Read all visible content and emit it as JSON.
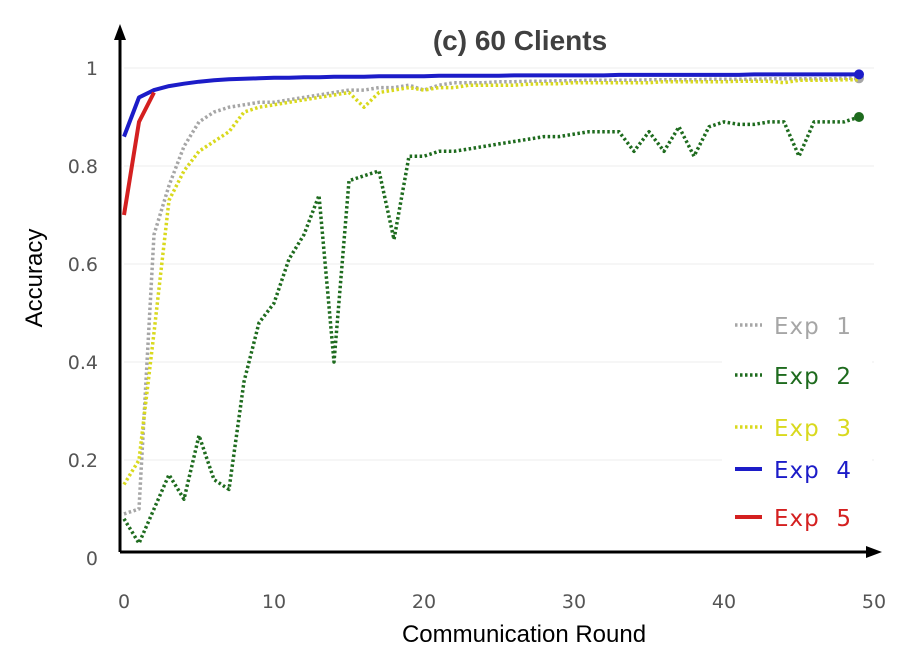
{
  "chart_data": {
    "type": "line",
    "title": "(c) 60 Clients",
    "xlabel": "Communication Round",
    "ylabel": "Accuracy",
    "xlim": [
      0,
      50
    ],
    "ylim": [
      0,
      1.0
    ],
    "x_ticks": [
      "0",
      "10",
      "20",
      "30",
      "40",
      "50"
    ],
    "y_ticks": [
      "0",
      "0.2",
      "0.4",
      "0.6",
      "0.8",
      "1"
    ],
    "grid": "horizontal",
    "legend_position": "bottom-right",
    "series": [
      {
        "name": "Exp  1",
        "color": "#a6a6a6",
        "style": "dotted",
        "end_marker": true,
        "x": [
          0,
          1,
          2,
          3,
          4,
          5,
          6,
          7,
          8,
          9,
          10,
          11,
          12,
          13,
          14,
          15,
          16,
          17,
          18,
          19,
          20,
          21,
          22,
          23,
          24,
          25,
          26,
          27,
          28,
          29,
          30,
          31,
          32,
          33,
          34,
          35,
          36,
          37,
          38,
          39,
          40,
          41,
          42,
          43,
          44,
          45,
          46,
          47,
          48,
          49
        ],
        "y": [
          0.09,
          0.1,
          0.66,
          0.76,
          0.84,
          0.89,
          0.91,
          0.92,
          0.925,
          0.93,
          0.93,
          0.935,
          0.94,
          0.945,
          0.95,
          0.955,
          0.955,
          0.96,
          0.96,
          0.965,
          0.955,
          0.965,
          0.97,
          0.97,
          0.97,
          0.972,
          0.972,
          0.973,
          0.973,
          0.974,
          0.974,
          0.975,
          0.975,
          0.975,
          0.975,
          0.976,
          0.976,
          0.976,
          0.976,
          0.977,
          0.977,
          0.977,
          0.977,
          0.978,
          0.978,
          0.978,
          0.978,
          0.978,
          0.979,
          0.979
        ]
      },
      {
        "name": "Exp  2",
        "color": "#1e6b1e",
        "style": "dotted",
        "end_marker": true,
        "x": [
          0,
          1,
          2,
          3,
          4,
          5,
          6,
          7,
          8,
          9,
          10,
          11,
          12,
          13,
          14,
          15,
          16,
          17,
          18,
          19,
          20,
          21,
          22,
          23,
          24,
          25,
          26,
          27,
          28,
          29,
          30,
          31,
          32,
          33,
          34,
          35,
          36,
          37,
          38,
          39,
          40,
          41,
          42,
          43,
          44,
          45,
          46,
          47,
          48,
          49
        ],
        "y": [
          0.08,
          0.03,
          0.1,
          0.17,
          0.12,
          0.25,
          0.16,
          0.14,
          0.36,
          0.48,
          0.52,
          0.61,
          0.66,
          0.74,
          0.4,
          0.77,
          0.78,
          0.79,
          0.65,
          0.82,
          0.82,
          0.83,
          0.83,
          0.835,
          0.84,
          0.845,
          0.85,
          0.855,
          0.86,
          0.86,
          0.865,
          0.87,
          0.87,
          0.87,
          0.83,
          0.87,
          0.83,
          0.88,
          0.82,
          0.88,
          0.89,
          0.885,
          0.885,
          0.89,
          0.89,
          0.82,
          0.89,
          0.89,
          0.89,
          0.9
        ]
      },
      {
        "name": "Exp  3",
        "color": "#d9d91e",
        "style": "dotted",
        "end_marker": false,
        "x": [
          0,
          1,
          2,
          3,
          4,
          5,
          6,
          7,
          8,
          9,
          10,
          11,
          12,
          13,
          14,
          15,
          16,
          17,
          18,
          19,
          20,
          21,
          22,
          23,
          24,
          25,
          26,
          27,
          28,
          29,
          30,
          31,
          32,
          33,
          34,
          35,
          36,
          37,
          38,
          39,
          40,
          41,
          42,
          43,
          44,
          45,
          46,
          47,
          48,
          49
        ],
        "y": [
          0.15,
          0.2,
          0.46,
          0.73,
          0.79,
          0.83,
          0.85,
          0.87,
          0.91,
          0.92,
          0.925,
          0.93,
          0.935,
          0.94,
          0.945,
          0.95,
          0.92,
          0.95,
          0.955,
          0.96,
          0.955,
          0.96,
          0.96,
          0.965,
          0.965,
          0.965,
          0.965,
          0.967,
          0.968,
          0.968,
          0.97,
          0.97,
          0.97,
          0.97,
          0.97,
          0.97,
          0.972,
          0.972,
          0.972,
          0.972,
          0.972,
          0.973,
          0.973,
          0.973,
          0.97,
          0.975,
          0.975,
          0.975,
          0.976,
          0.976
        ]
      },
      {
        "name": "Exp  4",
        "color": "#1c1cc8",
        "style": "solid",
        "end_marker": true,
        "x": [
          0,
          1,
          2,
          3,
          4,
          5,
          6,
          7,
          8,
          9,
          10,
          11,
          12,
          13,
          14,
          15,
          16,
          17,
          18,
          19,
          20,
          21,
          22,
          23,
          24,
          25,
          26,
          27,
          28,
          29,
          30,
          31,
          32,
          33,
          34,
          35,
          36,
          37,
          38,
          39,
          40,
          41,
          42,
          43,
          44,
          45,
          46,
          47,
          48,
          49
        ],
        "y": [
          0.86,
          0.94,
          0.955,
          0.963,
          0.968,
          0.972,
          0.975,
          0.977,
          0.978,
          0.979,
          0.98,
          0.98,
          0.981,
          0.981,
          0.982,
          0.982,
          0.982,
          0.983,
          0.983,
          0.983,
          0.983,
          0.984,
          0.984,
          0.984,
          0.984,
          0.984,
          0.985,
          0.985,
          0.985,
          0.985,
          0.985,
          0.985,
          0.985,
          0.986,
          0.986,
          0.986,
          0.986,
          0.986,
          0.986,
          0.986,
          0.986,
          0.986,
          0.987,
          0.987,
          0.987,
          0.987,
          0.987,
          0.987,
          0.987,
          0.987
        ]
      },
      {
        "name": "Exp  5",
        "color": "#d42020",
        "style": "solid",
        "end_marker": false,
        "x": [
          0,
          1,
          2
        ],
        "y": [
          0.7,
          0.89,
          0.95
        ]
      }
    ]
  }
}
